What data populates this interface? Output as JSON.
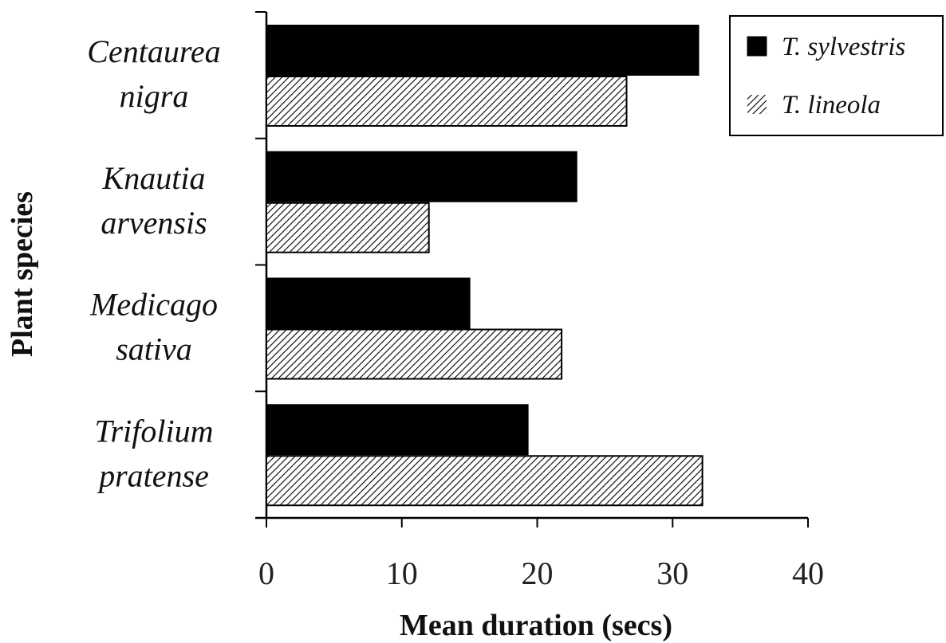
{
  "chart_data": {
    "type": "bar",
    "orientation": "horizontal",
    "title": "",
    "xlabel": "Mean duration (secs)",
    "ylabel": "Plant species",
    "xlim": [
      0,
      40
    ],
    "xticks": [
      0,
      10,
      20,
      30,
      40
    ],
    "grid": false,
    "legend_position": "top-right",
    "categories": [
      {
        "line1": "Centaurea",
        "line2": "nigra"
      },
      {
        "line1": "Knautia",
        "line2": "arvensis"
      },
      {
        "line1": "Medicago",
        "line2": "sativa"
      },
      {
        "line1": "Trifolium",
        "line2": "pratense"
      }
    ],
    "series": [
      {
        "name": "T. sylvestris",
        "fill": "solid",
        "color": "#000000",
        "values": [
          31.9,
          22.9,
          15.0,
          19.3
        ]
      },
      {
        "name": "T. lineola",
        "fill": "hatched",
        "color": "#000000",
        "values": [
          26.6,
          12.0,
          21.8,
          32.2
        ]
      }
    ]
  }
}
